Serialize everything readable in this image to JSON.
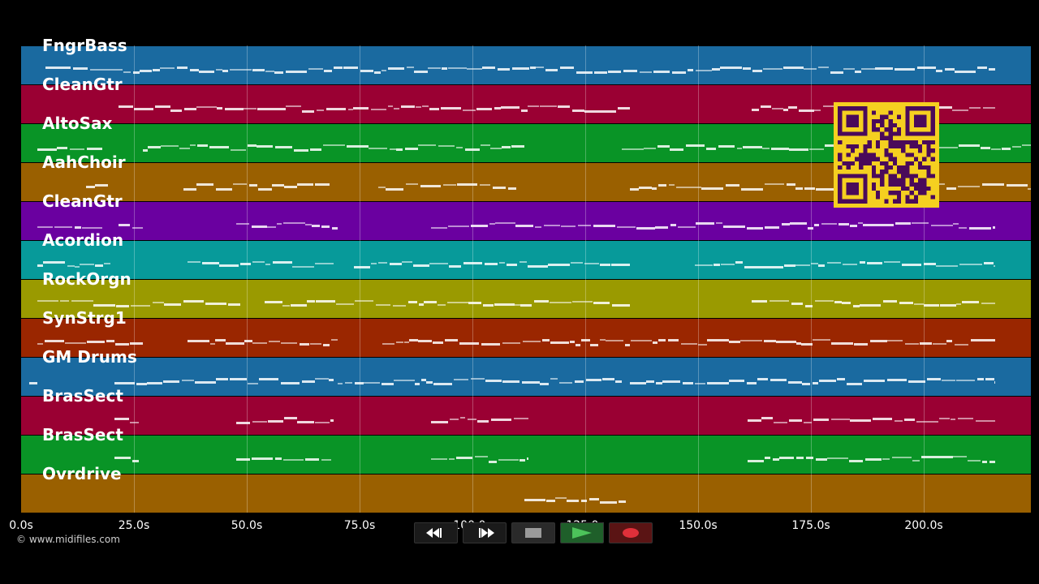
{
  "tracks": [
    {
      "name": "FngrBass",
      "color": "#1a6aa0"
    },
    {
      "name": "CleanGtr",
      "color": "#9a0033"
    },
    {
      "name": "AltoSax",
      "color": "#099426"
    },
    {
      "name": "AahChoir",
      "color": "#9a6000"
    },
    {
      "name": "CleanGtr",
      "color": "#6a00a0"
    },
    {
      "name": "Acordion",
      "color": "#079a9a"
    },
    {
      "name": "RockOrgn",
      "color": "#9a9a00"
    },
    {
      "name": "SynStrg1",
      "color": "#9a2600"
    },
    {
      "name": "GM Drums",
      "color": "#1a6aa0"
    },
    {
      "name": "BrasSect",
      "color": "#9a0033"
    },
    {
      "name": "BrasSect",
      "color": "#099426"
    },
    {
      "name": "Ovrdrive",
      "color": "#9a6000"
    }
  ],
  "timeline": {
    "ticks": [
      "0.0s",
      "25.0s",
      "50.0s",
      "75.0s",
      "100.0s",
      "125.0s",
      "150.0s",
      "175.0s",
      "200.0s"
    ]
  },
  "copyright": "© www.midifiles.com",
  "transport": {
    "rewind_icon": "rewind-icon",
    "forward_icon": "fast-forward-icon",
    "stop_icon": "stop-icon",
    "play_icon": "play-icon",
    "record_icon": "record-icon"
  },
  "qr_icon": "qr-code-icon"
}
